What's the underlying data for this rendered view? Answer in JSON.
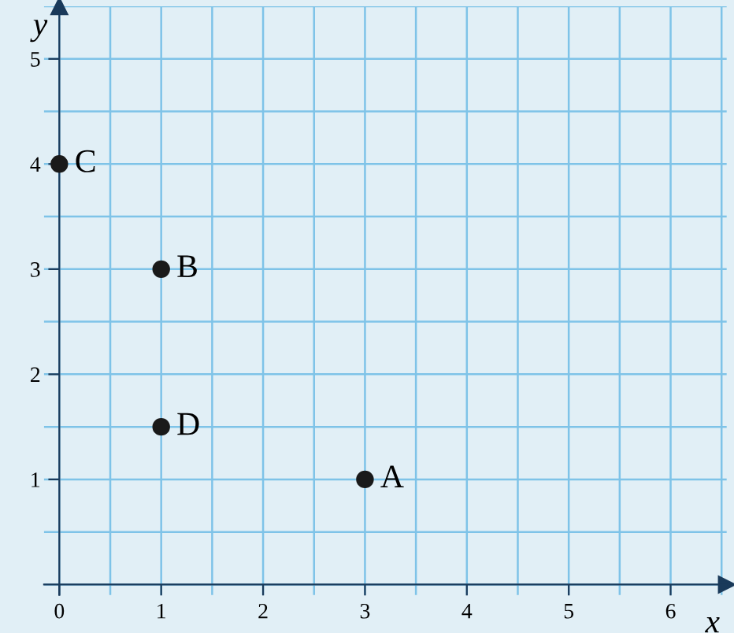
{
  "chart_data": {
    "type": "scatter",
    "xlabel": "x",
    "ylabel": "y",
    "x": [
      3,
      1,
      0,
      1
    ],
    "values": [
      1,
      3,
      4,
      1.5
    ],
    "color": "#1a1a1a",
    "marker": "circle",
    "annotations": [
      {
        "text": "A",
        "x": 3,
        "y": 1
      },
      {
        "text": "B",
        "x": 1,
        "y": 3
      },
      {
        "text": "C",
        "x": 0,
        "y": 4
      },
      {
        "text": "D",
        "x": 1,
        "y": 1.5
      }
    ],
    "xlim": [
      -0.15,
      6.55
    ],
    "ylim": [
      -0.1,
      5.5
    ],
    "xticks": [
      0,
      1,
      2,
      3,
      4,
      5,
      6
    ],
    "yticks": [
      1,
      2,
      3,
      4,
      5
    ],
    "grid": true,
    "legend": false
  }
}
